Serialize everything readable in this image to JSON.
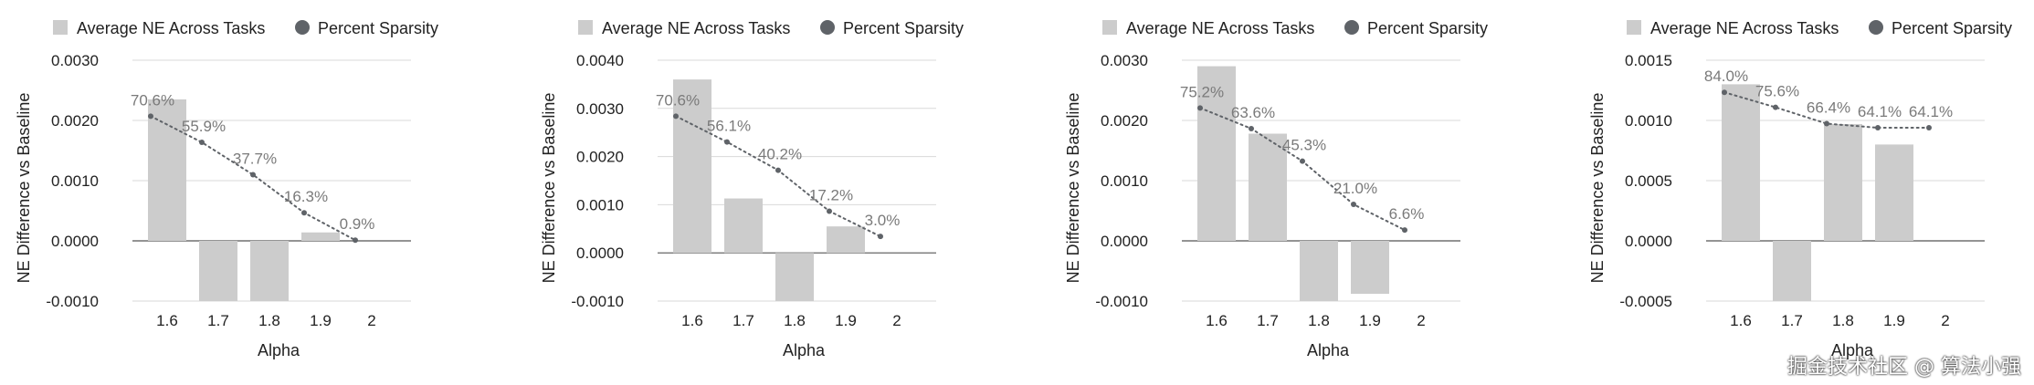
{
  "watermark": "掘金技术社区 @ 算法小强",
  "colors": {
    "bar": "#cccccc",
    "line": "#5f6368",
    "grid": "#d9d9d9",
    "text": "#222222",
    "label": "#7a7a7a"
  },
  "chart_data": [
    {
      "type": "bar",
      "legend": [
        "Average NE Across Tasks",
        "Percent Sparsity"
      ],
      "legend_position": "top-left",
      "xlabel": "Alpha",
      "ylabel": "NE Difference vs Baseline",
      "categories": [
        "1.6",
        "1.7",
        "1.8",
        "1.9",
        "2"
      ],
      "yticks": [
        "-0.0010",
        "0.0000",
        "0.0010",
        "0.0020",
        "0.0030"
      ],
      "ylim": [
        -0.001,
        0.003
      ],
      "grid": true,
      "series": [
        {
          "name": "Average NE Across Tasks",
          "kind": "bar",
          "values": [
            0.00235,
            -0.0011,
            -0.0011,
            0.00014,
            0.0
          ]
        },
        {
          "name": "Percent Sparsity",
          "kind": "line",
          "values": [
            70.6,
            55.9,
            37.7,
            16.3,
            0.9
          ],
          "labels": [
            "70.6%",
            "55.9%",
            "37.7%",
            "16.3%",
            "0.9%"
          ]
        }
      ]
    },
    {
      "type": "bar",
      "legend": [
        "Average NE Across Tasks",
        "Percent Sparsity"
      ],
      "legend_position": "top-left",
      "xlabel": "Alpha",
      "ylabel": "NE Difference vs Baseline",
      "categories": [
        "1.6",
        "1.7",
        "1.8",
        "1.9",
        "2"
      ],
      "yticks": [
        "-0.0010",
        "0.0000",
        "0.0010",
        "0.0020",
        "0.0030",
        "0.0040"
      ],
      "ylim": [
        -0.001,
        0.004
      ],
      "grid": true,
      "series": [
        {
          "name": "Average NE Across Tasks",
          "kind": "bar",
          "values": [
            0.0036,
            0.00113,
            -0.0011,
            0.00055,
            0.0
          ]
        },
        {
          "name": "Percent Sparsity",
          "kind": "line",
          "values": [
            70.6,
            56.1,
            40.2,
            17.2,
            3.0
          ],
          "labels": [
            "70.6%",
            "56.1%",
            "40.2%",
            "17.2%",
            "3.0%"
          ]
        }
      ]
    },
    {
      "type": "bar",
      "legend": [
        "Average NE Across Tasks",
        "Percent Sparsity"
      ],
      "legend_position": "top-left",
      "xlabel": "Alpha",
      "ylabel": "NE Difference vs Baseline",
      "categories": [
        "1.6",
        "1.7",
        "1.8",
        "1.9",
        "2"
      ],
      "yticks": [
        "-0.0010",
        "0.0000",
        "0.0010",
        "0.0020",
        "0.0030"
      ],
      "ylim": [
        -0.001,
        0.003
      ],
      "grid": true,
      "series": [
        {
          "name": "Average NE Across Tasks",
          "kind": "bar",
          "values": [
            0.0029,
            0.00178,
            -0.0011,
            -0.00088,
            0.0
          ]
        },
        {
          "name": "Percent Sparsity",
          "kind": "line",
          "values": [
            75.2,
            63.6,
            45.3,
            21.0,
            6.6
          ],
          "labels": [
            "75.2%",
            "63.6%",
            "45.3%",
            "21.0%",
            "6.6%"
          ]
        }
      ]
    },
    {
      "type": "bar",
      "legend": [
        "Average NE Across Tasks",
        "Percent Sparsity"
      ],
      "legend_position": "top-left",
      "xlabel": "Alpha",
      "ylabel": "NE Difference vs Baseline",
      "categories": [
        "1.6",
        "1.7",
        "1.8",
        "1.9",
        "2"
      ],
      "yticks": [
        "-0.0005",
        "0.0000",
        "0.0005",
        "0.0010",
        "0.0015"
      ],
      "ylim": [
        -0.0005,
        0.0015
      ],
      "grid": true,
      "series": [
        {
          "name": "Average NE Across Tasks",
          "kind": "bar",
          "values": [
            0.0013,
            -0.00055,
            0.00097,
            0.0008,
            0.0
          ]
        },
        {
          "name": "Percent Sparsity",
          "kind": "line",
          "values": [
            84.0,
            75.6,
            66.4,
            64.1,
            64.1
          ],
          "labels": [
            "84.0%",
            "75.6%",
            "66.4%",
            "64.1%",
            "64.1%"
          ]
        }
      ]
    }
  ]
}
